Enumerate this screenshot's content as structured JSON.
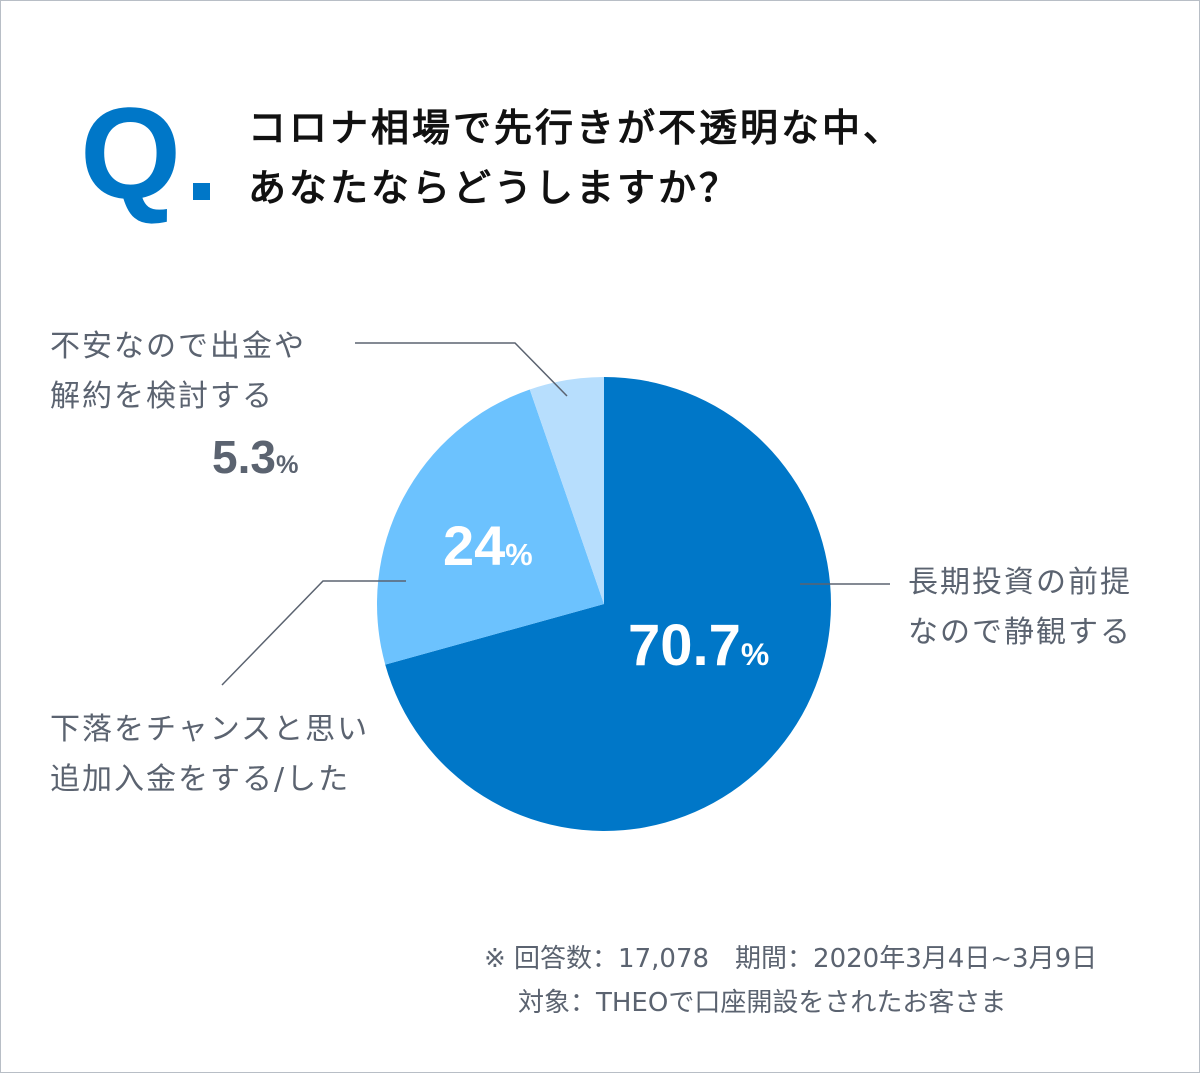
{
  "question_mark": "Q",
  "title_lines": [
    "コロナ相場で先行きが不透明な中、",
    "あなたならどうしますか？"
  ],
  "chart_data": {
    "type": "pie",
    "start": "top",
    "direction": "clockwise",
    "slices": [
      {
        "label_lines": [
          "長期投資の前提",
          "なので静観する"
        ],
        "value": 70.7,
        "display": "70.7",
        "color": "#0077c8"
      },
      {
        "label_lines": [
          "下落をチャンスと思い",
          "追加入金をする/した"
        ],
        "value": 24,
        "display": "24",
        "color": "#6cc2fe"
      },
      {
        "label_lines": [
          "不安なので出金や",
          "解約を検討する"
        ],
        "value": 5.3,
        "display": "5.3",
        "color": "#b7defd"
      }
    ],
    "unit": "%"
  },
  "footnote": [
    "※ 回答数：17,078　期間：2020年3月4日~3月9日",
    "対象：THEOで口座開設をされたお客さま"
  ]
}
